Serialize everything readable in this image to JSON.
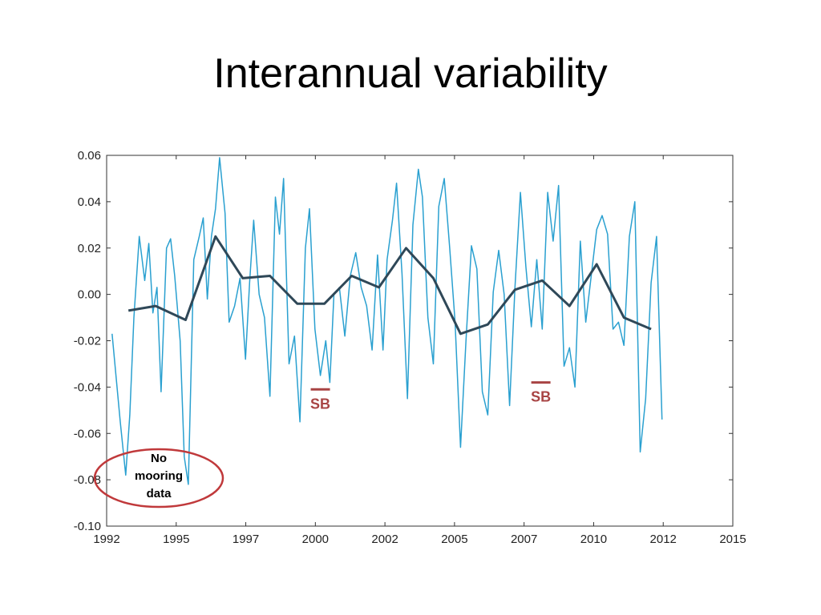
{
  "slide": {
    "title": "Interannual variability"
  },
  "chart_data": {
    "type": "line",
    "title": "",
    "xlabel": "",
    "ylabel": "",
    "xlim": [
      1992,
      2015
    ],
    "ylim": [
      -0.1,
      0.06
    ],
    "x_ticks": [
      "1992",
      "1995",
      "1997",
      "2000",
      "2002",
      "2005",
      "2007",
      "2010",
      "2012",
      "2015"
    ],
    "y_ticks": [
      "0.06",
      "0.04",
      "0.02",
      "0.00",
      "-0.02",
      "-0.04",
      "-0.06",
      "-0.08",
      "-0.10"
    ],
    "grid": false,
    "series": [
      {
        "color": "#2aa0d0",
        "x": [
          1992.2,
          1992.5,
          1992.7,
          1992.85,
          1993.0,
          1993.2,
          1993.4,
          1993.55,
          1993.7,
          1993.85,
          1994.0,
          1994.2,
          1994.35,
          1994.5,
          1994.7,
          1994.85,
          1995.0,
          1995.2,
          1995.4,
          1995.55,
          1995.7,
          1995.85,
          1996.0,
          1996.15,
          1996.35,
          1996.5,
          1996.7,
          1996.9,
          1997.1,
          1997.25,
          1997.4,
          1997.6,
          1997.8,
          1998.0,
          1998.2,
          1998.35,
          1998.5,
          1998.7,
          1998.9,
          1999.1,
          1999.3,
          1999.45,
          1999.65,
          1999.85,
          2000.05,
          2000.2,
          2000.35,
          2000.55,
          2000.75,
          2000.95,
          2001.15,
          2001.35,
          2001.55,
          2001.75,
          2001.95,
          2002.15,
          2002.3,
          2002.5,
          2002.65,
          2002.85,
          2003.05,
          2003.25,
          2003.45,
          2003.6,
          2003.8,
          2004.0,
          2004.2,
          2004.4,
          2004.6,
          2004.8,
          2005.0,
          2005.2,
          2005.4,
          2005.6,
          2005.8,
          2006.0,
          2006.2,
          2006.4,
          2006.6,
          2006.8,
          2007.0,
          2007.2,
          2007.4,
          2007.6,
          2007.8,
          2008.0,
          2008.2,
          2008.4,
          2008.6,
          2008.8,
          2009.0,
          2009.2,
          2009.4,
          2009.6,
          2009.8,
          2010.0,
          2010.2,
          2010.4,
          2010.6,
          2010.8,
          2011.0,
          2011.2,
          2011.4,
          2011.6,
          2011.8,
          2012.0,
          2012.2,
          2012.4
        ],
        "values": [
          -0.017,
          -0.055,
          -0.078,
          -0.052,
          -0.01,
          0.025,
          0.006,
          0.022,
          -0.008,
          0.003,
          -0.042,
          0.02,
          0.024,
          0.008,
          -0.02,
          -0.07,
          -0.082,
          0.015,
          0.025,
          0.033,
          -0.002,
          0.025,
          0.037,
          0.059,
          0.035,
          -0.012,
          -0.005,
          0.007,
          -0.028,
          0.005,
          0.032,
          0.0,
          -0.01,
          -0.044,
          0.042,
          0.026,
          0.05,
          -0.03,
          -0.018,
          -0.055,
          0.02,
          0.037,
          -0.015,
          -0.035,
          -0.02,
          -0.038,
          0.0,
          0.003,
          -0.018,
          0.008,
          0.018,
          0.003,
          -0.005,
          -0.024,
          0.017,
          -0.024,
          0.015,
          0.032,
          0.048,
          0.009,
          -0.045,
          0.03,
          0.054,
          0.042,
          -0.01,
          -0.03,
          0.038,
          0.05,
          0.02,
          -0.012,
          -0.066,
          -0.02,
          0.021,
          0.011,
          -0.042,
          -0.052,
          0.001,
          0.019,
          0.0,
          -0.048,
          0.003,
          0.044,
          0.012,
          -0.014,
          0.015,
          -0.015,
          0.044,
          0.023,
          0.047,
          -0.031,
          -0.023,
          -0.04,
          0.023,
          -0.012,
          0.008,
          0.028,
          0.034,
          0.026,
          -0.015,
          -0.012,
          -0.022,
          0.025,
          0.04,
          -0.068,
          -0.045,
          0.005,
          0.025,
          -0.054
        ]
      },
      {
        "color": "#2f4858",
        "x": [
          1992.8,
          1993.8,
          1994.9,
          1996.0,
          1997.0,
          1998.0,
          1999.0,
          2000.0,
          2001.0,
          2002.0,
          2003.0,
          2004.0,
          2005.0,
          2006.0,
          2007.0,
          2008.0,
          2009.0,
          2010.0,
          2011.0,
          2012.0
        ],
        "values": [
          -0.007,
          -0.005,
          -0.011,
          0.025,
          0.007,
          0.008,
          -0.004,
          -0.004,
          0.008,
          0.003,
          0.02,
          0.007,
          -0.017,
          -0.013,
          0.002,
          0.006,
          -0.005,
          0.013,
          -0.01,
          -0.015
        ]
      }
    ],
    "annotations": [
      {
        "text": "SB",
        "color": "#a84444",
        "x": 1999.85,
        "y": -0.041
      },
      {
        "text": "SB",
        "color": "#a84444",
        "x": 2007.95,
        "y": -0.038
      },
      {
        "lines": [
          "No",
          "mooring",
          "data"
        ],
        "color": "#c0393b"
      }
    ]
  }
}
